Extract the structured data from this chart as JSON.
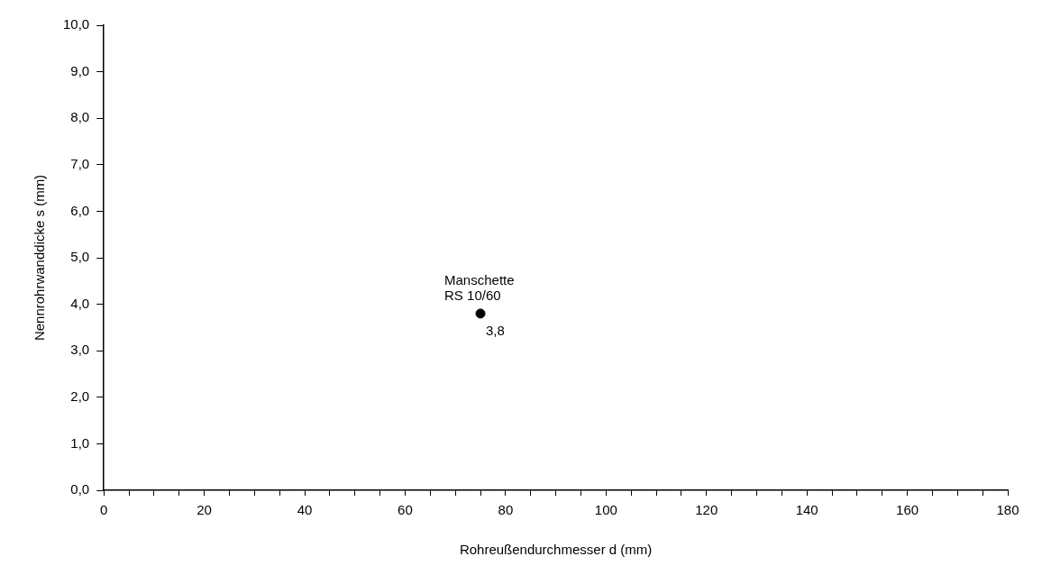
{
  "chart_data": {
    "type": "scatter",
    "xlabel": "Rohreußendurchmesser d (mm)",
    "ylabel": "Nennrohrwanddicke s (mm)",
    "x": [
      75
    ],
    "values": [
      3.8
    ],
    "value_labels": [
      "3,8"
    ],
    "color": "#000000",
    "marker": "circle",
    "grid": false,
    "legend": false,
    "xlim": [
      0,
      180
    ],
    "xticks": [
      0,
      {
        "value": 5,
        "label": null
      },
      {
        "value": 10,
        "label": null
      },
      {
        "value": 15,
        "label": null
      },
      20,
      {
        "value": 25,
        "label": null
      },
      {
        "value": 30,
        "label": null
      },
      {
        "value": 35,
        "label": null
      },
      40,
      {
        "value": 45,
        "label": null
      },
      {
        "value": 50,
        "label": null
      },
      {
        "value": 55,
        "label": null
      },
      60,
      {
        "value": 65,
        "label": null
      },
      {
        "value": 70,
        "label": null
      },
      {
        "value": 75,
        "label": null
      },
      80,
      {
        "value": 85,
        "label": null
      },
      {
        "value": 90,
        "label": null
      },
      {
        "value": 95,
        "label": null
      },
      100,
      {
        "value": 105,
        "label": null
      },
      {
        "value": 110,
        "label": null
      },
      {
        "value": 115,
        "label": null
      },
      120,
      {
        "value": 125,
        "label": null
      },
      {
        "value": 130,
        "label": null
      },
      {
        "value": 135,
        "label": null
      },
      140,
      {
        "value": 145,
        "label": null
      },
      {
        "value": 150,
        "label": null
      },
      {
        "value": 155,
        "label": null
      },
      160,
      {
        "value": 165,
        "label": null
      },
      {
        "value": 170,
        "label": null
      },
      {
        "value": 175,
        "label": null
      },
      180
    ],
    "ylim": [
      0,
      10
    ],
    "yticks": [
      {
        "value": 0,
        "label": "0,0"
      },
      {
        "value": 1,
        "label": "1,0"
      },
      {
        "value": 2,
        "label": "2,0"
      },
      {
        "value": 3,
        "label": "3,0"
      },
      {
        "value": 4,
        "label": "4,0"
      },
      {
        "value": 5,
        "label": "5,0"
      },
      {
        "value": 6,
        "label": "6,0"
      },
      {
        "value": 7,
        "label": "7,0"
      },
      {
        "value": 8,
        "label": "8,0"
      },
      {
        "value": 9,
        "label": "9,0"
      },
      {
        "value": 10,
        "label": "10,0"
      }
    ],
    "annotations": [
      {
        "text": "Manschette\nRS 10/60",
        "x": 75,
        "y": 3.8
      }
    ]
  }
}
